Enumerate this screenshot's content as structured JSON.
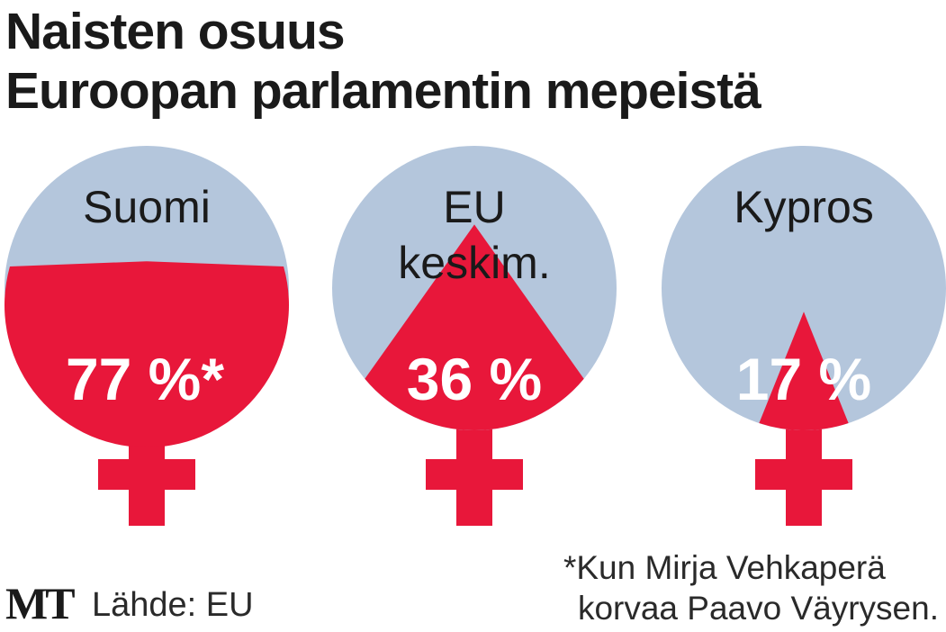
{
  "title": {
    "line1": "Naisten osuus",
    "line2": "Euroopan parlamentin mepeistä"
  },
  "colors": {
    "women": "#e8173a",
    "men": "#b4c6dc",
    "text_dark": "#1a1a1a",
    "text_light": "#ffffff"
  },
  "chart_data": {
    "type": "pie",
    "title": "Naisten osuus Euroopan parlamentin mepeistä",
    "unit": "%",
    "items": [
      {
        "name_lines": [
          "Suomi"
        ],
        "value": 77,
        "label": "77 %*"
      },
      {
        "name_lines": [
          "EU",
          "keskim."
        ],
        "value": 36,
        "label": "36 %"
      },
      {
        "name_lines": [
          "Kypros"
        ],
        "value": 17,
        "label": "17 %"
      }
    ]
  },
  "footer": {
    "logo": "MT",
    "source": "Lähde: EU",
    "footnote_line1": "*Kun Mirja Vehkaperä",
    "footnote_line2": "korvaa Paavo Väyrysen."
  }
}
